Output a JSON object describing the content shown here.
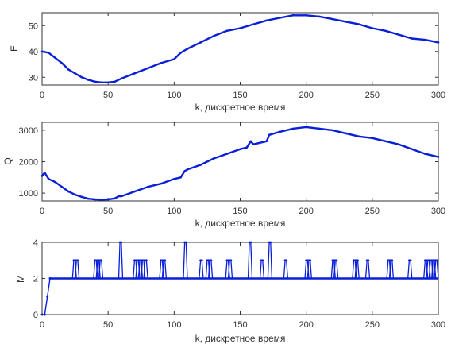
{
  "figure": {
    "accent": "#0a1fd8"
  },
  "chart_data": [
    {
      "type": "line",
      "xlabel": "k, дискретное время",
      "ylabel": "E",
      "xlim": [
        0,
        300
      ],
      "ylim": [
        27,
        55
      ],
      "xticks": [
        0,
        50,
        100,
        150,
        200,
        250,
        300
      ],
      "yticks": [
        30,
        40,
        50
      ],
      "grid": false,
      "series": [
        {
          "color": "#0a1fd8",
          "x": [
            0,
            5,
            10,
            15,
            20,
            25,
            30,
            35,
            40,
            45,
            50,
            55,
            60,
            70,
            80,
            90,
            100,
            105,
            110,
            120,
            130,
            140,
            150,
            160,
            170,
            180,
            190,
            200,
            210,
            220,
            230,
            240,
            250,
            260,
            270,
            280,
            290,
            300
          ],
          "y": [
            40,
            39.5,
            37.5,
            35.5,
            33,
            31.5,
            30,
            29,
            28.3,
            28,
            28,
            28.3,
            29.5,
            31.5,
            33.5,
            35.5,
            37,
            39.5,
            41,
            43.5,
            46,
            48,
            49,
            50.5,
            52,
            53,
            54,
            54,
            53.5,
            52.5,
            51.5,
            50.5,
            49,
            48,
            46.5,
            45,
            44.5,
            43.5
          ]
        }
      ]
    },
    {
      "type": "line",
      "xlabel": "k, дискретное время",
      "ylabel": "Q",
      "xlim": [
        0,
        300
      ],
      "ylim": [
        750,
        3250
      ],
      "xticks": [
        0,
        50,
        100,
        150,
        200,
        250,
        300
      ],
      "yticks": [
        1000,
        2000,
        3000
      ],
      "grid": false,
      "series": [
        {
          "color": "#0a1fd8",
          "x": [
            0,
            2,
            5,
            10,
            15,
            20,
            25,
            30,
            35,
            40,
            45,
            50,
            55,
            58,
            60,
            70,
            80,
            90,
            100,
            105,
            108,
            110,
            120,
            130,
            140,
            150,
            155,
            158,
            160,
            170,
            172,
            180,
            190,
            200,
            210,
            220,
            230,
            240,
            250,
            260,
            270,
            280,
            290,
            300
          ],
          "y": [
            1550,
            1650,
            1450,
            1350,
            1200,
            1050,
            950,
            880,
            820,
            800,
            790,
            800,
            830,
            900,
            900,
            1050,
            1200,
            1300,
            1450,
            1500,
            1700,
            1750,
            1900,
            2100,
            2250,
            2400,
            2450,
            2650,
            2550,
            2650,
            2850,
            2950,
            3050,
            3100,
            3050,
            3000,
            2900,
            2800,
            2750,
            2650,
            2550,
            2400,
            2250,
            2150
          ]
        }
      ]
    },
    {
      "type": "line",
      "xlabel": "k, дискретное время",
      "ylabel": "M",
      "xlim": [
        0,
        300
      ],
      "ylim": [
        0,
        4
      ],
      "xticks": [
        0,
        50,
        100,
        150,
        200,
        250,
        300
      ],
      "yticks": [
        0,
        2,
        4
      ],
      "grid": false,
      "series": [
        {
          "color": "#0a1fd8",
          "base_level": 2,
          "start": [
            [
              0,
              0
            ],
            [
              2,
              0
            ],
            [
              4,
              1
            ],
            [
              6,
              2
            ]
          ],
          "spikes": [
            {
              "x": 24,
              "y": 3
            },
            {
              "x": 26,
              "y": 3
            },
            {
              "x": 40,
              "y": 3
            },
            {
              "x": 42,
              "y": 3
            },
            {
              "x": 44,
              "y": 3
            },
            {
              "x": 59,
              "y": 4
            },
            {
              "x": 70,
              "y": 3
            },
            {
              "x": 72,
              "y": 3
            },
            {
              "x": 74,
              "y": 3
            },
            {
              "x": 76,
              "y": 3
            },
            {
              "x": 78,
              "y": 3
            },
            {
              "x": 90,
              "y": 3
            },
            {
              "x": 92,
              "y": 3
            },
            {
              "x": 108,
              "y": 4
            },
            {
              "x": 120,
              "y": 3
            },
            {
              "x": 125,
              "y": 3
            },
            {
              "x": 127,
              "y": 3
            },
            {
              "x": 140,
              "y": 3
            },
            {
              "x": 142,
              "y": 3
            },
            {
              "x": 157,
              "y": 4
            },
            {
              "x": 166,
              "y": 3
            },
            {
              "x": 172,
              "y": 4
            },
            {
              "x": 184,
              "y": 3
            },
            {
              "x": 200,
              "y": 3
            },
            {
              "x": 202,
              "y": 3
            },
            {
              "x": 220,
              "y": 3
            },
            {
              "x": 222,
              "y": 3
            },
            {
              "x": 236,
              "y": 3
            },
            {
              "x": 238,
              "y": 3
            },
            {
              "x": 246,
              "y": 3
            },
            {
              "x": 262,
              "y": 3
            },
            {
              "x": 264,
              "y": 3
            },
            {
              "x": 278,
              "y": 3
            },
            {
              "x": 290,
              "y": 3
            },
            {
              "x": 292,
              "y": 3
            },
            {
              "x": 294,
              "y": 3
            },
            {
              "x": 296,
              "y": 3
            },
            {
              "x": 298,
              "y": 3
            }
          ],
          "end_x": 300
        }
      ]
    }
  ]
}
